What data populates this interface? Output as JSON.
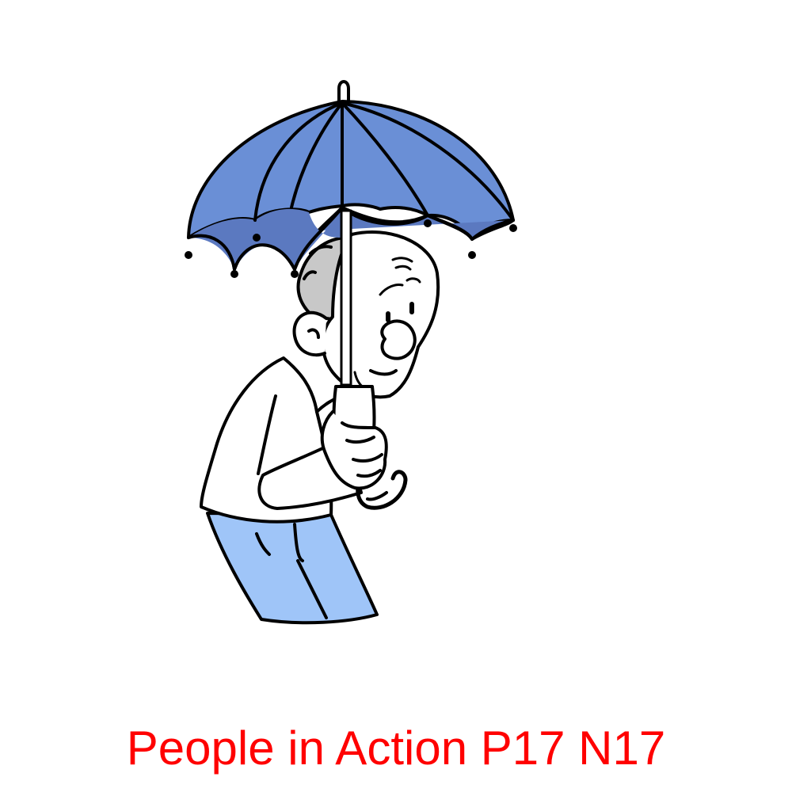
{
  "caption": {
    "text": "People in Action P17 N17",
    "color": "#ff0000"
  },
  "illustration": {
    "subject": "man-holding-umbrella",
    "colors": {
      "umbrella_outer": "#6a8fd6",
      "umbrella_inner": "#5b79c0",
      "pants": "#9fc5f8",
      "hair": "#c8c8c8",
      "outline": "#000000",
      "skin": "#ffffff"
    }
  }
}
